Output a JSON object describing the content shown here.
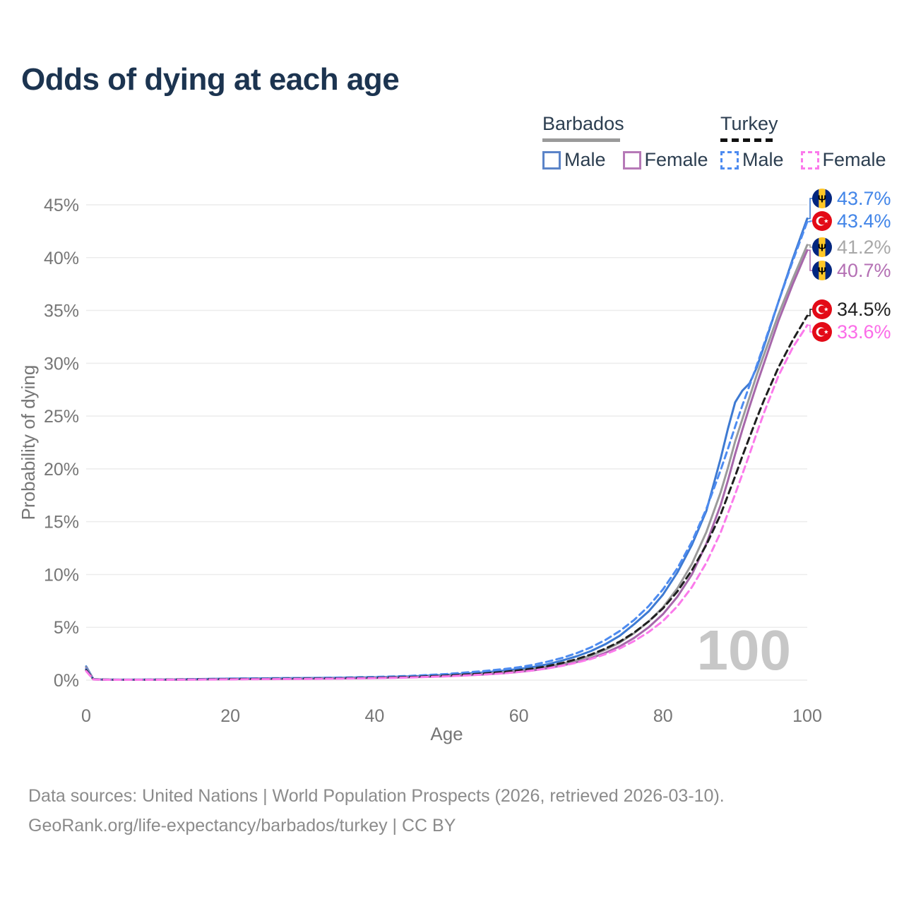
{
  "title": "Odds of dying at each age",
  "legend": {
    "barbados": {
      "name": "Barbados",
      "male": "Male",
      "female": "Female"
    },
    "turkey": {
      "name": "Turkey",
      "male": "Male",
      "female": "Female"
    }
  },
  "footer": {
    "line1": "Data sources: United Nations | World Population Prospects (2026, retrieved 2026-03-10).",
    "line2": "GeoRank.org/life-expectancy/barbados/turkey | CC BY"
  },
  "chart_data": {
    "type": "line",
    "title": "Odds of dying at each age",
    "xlabel": "Age",
    "ylabel": "Probability of dying",
    "xlim": [
      0,
      100
    ],
    "ylim": [
      0,
      45
    ],
    "x_ticks": [
      0,
      20,
      40,
      60,
      80,
      100
    ],
    "y_ticks": [
      0,
      5,
      10,
      15,
      20,
      25,
      30,
      35,
      40,
      45
    ],
    "y_tick_suffix": "%",
    "grid": "horizontal",
    "legend_position": "top-right",
    "watermark": "100",
    "ages": [
      0,
      1,
      3,
      5,
      10,
      15,
      20,
      25,
      30,
      35,
      40,
      45,
      50,
      55,
      58,
      60,
      62,
      64,
      66,
      68,
      70,
      72,
      74,
      76,
      78,
      80,
      82,
      84,
      86,
      88,
      89,
      90,
      91,
      92,
      93,
      94,
      96,
      98,
      100
    ],
    "series": [
      {
        "name": "Barbados Male",
        "country": "Barbados",
        "sex": "Male",
        "style": "solid",
        "color": "#3e7ad2",
        "label_color": "#4285e8",
        "end_value_pct": 43.7,
        "end_label": "43.7%",
        "values": [
          1.3,
          0.09,
          0.05,
          0.04,
          0.05,
          0.09,
          0.14,
          0.17,
          0.19,
          0.22,
          0.27,
          0.35,
          0.5,
          0.72,
          0.9,
          1.05,
          1.25,
          1.5,
          1.85,
          2.25,
          2.75,
          3.4,
          4.2,
          5.3,
          6.5,
          8.1,
          10.2,
          12.8,
          16.0,
          21.0,
          23.8,
          26.3,
          27.4,
          28.1,
          29.6,
          31.6,
          35.8,
          39.9,
          43.7
        ]
      },
      {
        "name": "Turkey Male",
        "country": "Turkey",
        "sex": "Male",
        "style": "dashed",
        "color": "#4d8bf0",
        "label_color": "#4285e8",
        "end_value_pct": 43.4,
        "end_label": "43.4%",
        "values": [
          1.05,
          0.08,
          0.04,
          0.04,
          0.05,
          0.09,
          0.14,
          0.17,
          0.2,
          0.24,
          0.3,
          0.4,
          0.58,
          0.85,
          1.05,
          1.22,
          1.45,
          1.75,
          2.1,
          2.55,
          3.1,
          3.8,
          4.65,
          5.7,
          7.0,
          8.6,
          10.6,
          13.1,
          16.2,
          19.9,
          21.9,
          24.0,
          26.0,
          27.9,
          29.8,
          31.8,
          35.8,
          39.7,
          43.4
        ]
      },
      {
        "name": "Barbados Both sexes",
        "country": "Barbados",
        "sex": "Both",
        "style": "solid",
        "color": "#9b9b9b",
        "label_color": "#a8a8a8",
        "end_value_pct": 41.2,
        "end_label": "41.2%",
        "values": [
          1.2,
          0.08,
          0.04,
          0.04,
          0.04,
          0.07,
          0.11,
          0.13,
          0.15,
          0.18,
          0.23,
          0.3,
          0.42,
          0.6,
          0.75,
          0.88,
          1.05,
          1.27,
          1.55,
          1.9,
          2.32,
          2.87,
          3.55,
          4.45,
          5.55,
          6.9,
          8.7,
          11.0,
          14.0,
          17.8,
          20.1,
          22.6,
          24.7,
          26.8,
          28.9,
          30.8,
          34.6,
          38.0,
          41.2
        ]
      },
      {
        "name": "Barbados Female",
        "country": "Barbados",
        "sex": "Female",
        "style": "solid",
        "color": "#a767ab",
        "label_color": "#b470b4",
        "end_value_pct": 40.7,
        "end_label": "40.7%",
        "values": [
          1.1,
          0.07,
          0.04,
          0.03,
          0.04,
          0.06,
          0.09,
          0.11,
          0.13,
          0.16,
          0.2,
          0.27,
          0.37,
          0.53,
          0.66,
          0.78,
          0.93,
          1.13,
          1.38,
          1.7,
          2.08,
          2.58,
          3.2,
          4.0,
          5.0,
          6.25,
          7.9,
          10.0,
          12.9,
          16.6,
          18.9,
          21.4,
          23.7,
          25.9,
          28.0,
          30.0,
          34.0,
          37.5,
          40.7
        ]
      },
      {
        "name": "Turkey Both sexes",
        "country": "Turkey",
        "sex": "Both",
        "style": "dashed",
        "color": "#1f1f1f",
        "label_color": "#1f1f1f",
        "end_value_pct": 34.5,
        "end_label": "34.5%",
        "values": [
          0.95,
          0.07,
          0.04,
          0.03,
          0.04,
          0.07,
          0.1,
          0.12,
          0.14,
          0.17,
          0.22,
          0.3,
          0.43,
          0.62,
          0.78,
          0.92,
          1.1,
          1.33,
          1.62,
          1.98,
          2.42,
          2.98,
          3.65,
          4.5,
          5.55,
          6.8,
          8.4,
          10.4,
          12.8,
          15.7,
          17.5,
          19.3,
          21.2,
          23.0,
          24.8,
          26.5,
          29.6,
          32.2,
          34.5
        ]
      },
      {
        "name": "Turkey Female",
        "country": "Turkey",
        "sex": "Female",
        "style": "dashed",
        "color": "#fb7aeb",
        "label_color": "#fb6ce8",
        "end_value_pct": 33.6,
        "end_label": "33.6%",
        "values": [
          0.85,
          0.06,
          0.03,
          0.03,
          0.03,
          0.05,
          0.07,
          0.09,
          0.11,
          0.14,
          0.18,
          0.25,
          0.36,
          0.52,
          0.65,
          0.77,
          0.92,
          1.11,
          1.35,
          1.65,
          2.0,
          2.45,
          3.0,
          3.7,
          4.55,
          5.6,
          7.0,
          8.8,
          11.1,
          14.0,
          15.8,
          17.6,
          19.5,
          21.4,
          23.4,
          25.3,
          28.8,
          31.5,
          33.6
        ]
      }
    ]
  }
}
